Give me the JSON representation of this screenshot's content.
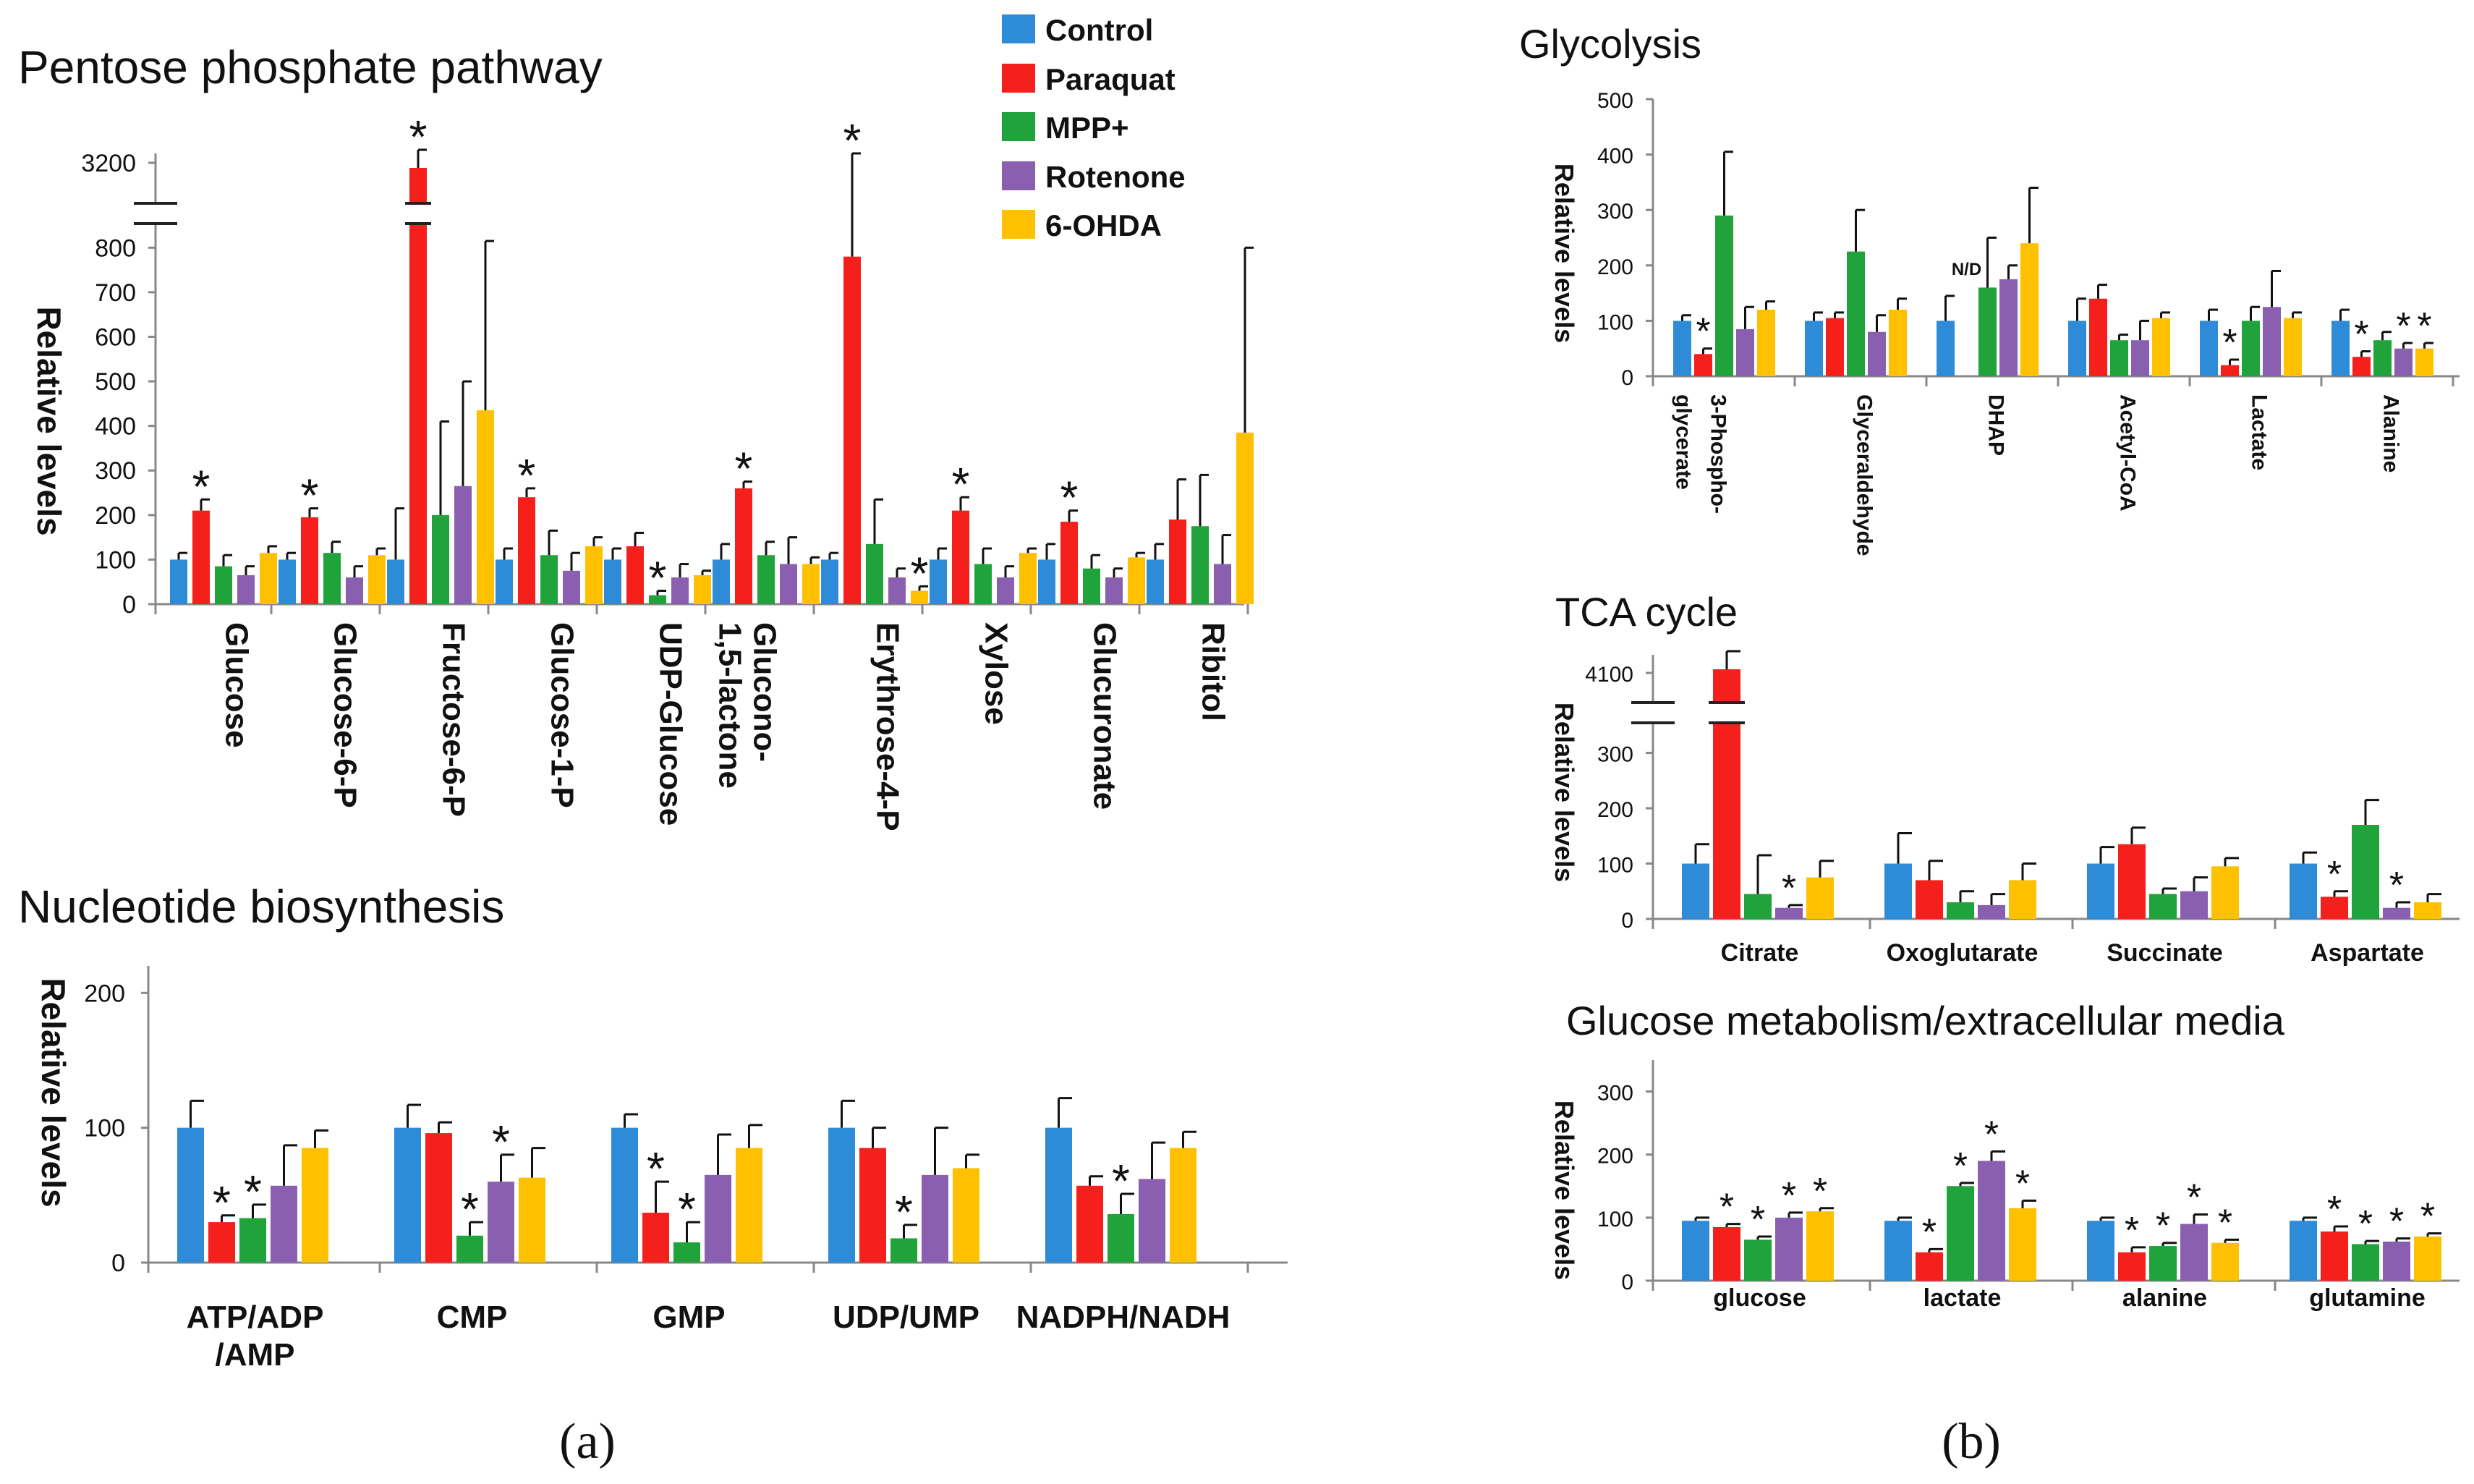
{
  "legend": [
    {
      "name": "Control",
      "color": "#2e8bd8"
    },
    {
      "name": "Paraquat",
      "color": "#f5201b"
    },
    {
      "name": "MPP+",
      "color": "#1fa33a"
    },
    {
      "name": "Rotenone",
      "color": "#8a5fb0"
    },
    {
      "name": "6-OHDA",
      "color": "#ffc000"
    }
  ],
  "panel_labels": {
    "a": "(a)",
    "b": "(b)"
  },
  "chart_data": [
    {
      "id": "ppp",
      "type": "bar",
      "title": "Pentose phosphate pathway",
      "ylabel": "Relative levels",
      "yticks": [
        0,
        100,
        200,
        300,
        400,
        500,
        600,
        700,
        800
      ],
      "break_tick": "3200",
      "ylim": [
        0,
        820
      ],
      "break": {
        "from": 820,
        "top_value": 3200
      },
      "categories": [
        "Glucose",
        "Glucose-6-P",
        "Fructose-6-P",
        "Glucose-1-P",
        "UDP-Glucose",
        "Glucono-\n1,5-lactone",
        "Erythrose-4-P",
        "Xylose",
        "Glucuronate",
        "Ribitol"
      ],
      "values": [
        [
          100,
          210,
          85,
          65,
          115
        ],
        [
          100,
          195,
          115,
          60,
          110
        ],
        [
          100,
          3150,
          200,
          265,
          435
        ],
        [
          100,
          240,
          110,
          75,
          130
        ],
        [
          100,
          130,
          20,
          60,
          65
        ],
        [
          100,
          260,
          110,
          90,
          90
        ],
        [
          100,
          780,
          135,
          60,
          30
        ],
        [
          100,
          210,
          90,
          60,
          115
        ],
        [
          100,
          185,
          80,
          60,
          105
        ],
        [
          100,
          190,
          175,
          90,
          385
        ]
      ],
      "errors": [
        [
          15,
          25,
          25,
          20,
          15
        ],
        [
          15,
          20,
          25,
          25,
          15
        ],
        [
          115,
          60,
          210,
          235,
          380
        ],
        [
          25,
          20,
          55,
          40,
          20
        ],
        [
          25,
          30,
          10,
          30,
          10
        ],
        [
          35,
          15,
          30,
          60,
          15
        ],
        [
          15,
          70,
          100,
          20,
          10
        ],
        [
          25,
          30,
          35,
          25,
          10
        ],
        [
          35,
          25,
          30,
          20,
          10
        ],
        [
          35,
          90,
          115,
          65,
          415
        ]
      ],
      "stars": [
        [
          0,
          1,
          0,
          0,
          0
        ],
        [
          0,
          1,
          0,
          0,
          0
        ],
        [
          0,
          1,
          0,
          0,
          0
        ],
        [
          0,
          1,
          0,
          0,
          0
        ],
        [
          0,
          0,
          1,
          0,
          0
        ],
        [
          0,
          1,
          0,
          0,
          0
        ],
        [
          0,
          1,
          0,
          0,
          1
        ],
        [
          0,
          1,
          0,
          0,
          0
        ],
        [
          0,
          1,
          0,
          0,
          0
        ],
        [
          0,
          0,
          0,
          0,
          0
        ]
      ]
    },
    {
      "id": "nuc",
      "type": "bar",
      "title": "Nucleotide biosynthesis",
      "ylabel": "Relative levels",
      "yticks": [
        0,
        100,
        200
      ],
      "ylim": [
        0,
        220
      ],
      "categories": [
        "ATP/ADP\n/AMP",
        "CMP",
        "GMP",
        "UDP/UMP",
        "NADPH/NADH"
      ],
      "values": [
        [
          100,
          30,
          33,
          57,
          85
        ],
        [
          100,
          96,
          20,
          60,
          63
        ],
        [
          100,
          37,
          15,
          65,
          85
        ],
        [
          100,
          85,
          18,
          65,
          70
        ],
        [
          100,
          57,
          36,
          62,
          85
        ]
      ],
      "errors": [
        [
          20,
          5,
          10,
          30,
          13
        ],
        [
          17,
          8,
          10,
          20,
          22
        ],
        [
          10,
          23,
          15,
          30,
          17
        ],
        [
          20,
          15,
          10,
          35,
          10
        ],
        [
          22,
          7,
          15,
          27,
          12
        ]
      ],
      "stars": [
        [
          0,
          1,
          1,
          0,
          0
        ],
        [
          0,
          0,
          1,
          1,
          0
        ],
        [
          0,
          1,
          1,
          0,
          0
        ],
        [
          0,
          0,
          1,
          0,
          0
        ],
        [
          0,
          0,
          1,
          0,
          0
        ]
      ]
    },
    {
      "id": "gly",
      "type": "bar",
      "title": "Glycolysis",
      "ylabel": "Relative levels",
      "yticks": [
        0,
        100,
        200,
        300,
        400,
        500
      ],
      "ylim": [
        0,
        500
      ],
      "categories": [
        "3-Phospho-\nglycerate",
        "Glyceraldehyde",
        "DHAP",
        "Acetyl-CoA",
        "Lactate",
        "Alanine"
      ],
      "values": [
        [
          100,
          40,
          290,
          85,
          120
        ],
        [
          100,
          105,
          225,
          80,
          120
        ],
        [
          100,
          0,
          160,
          175,
          240
        ],
        [
          100,
          140,
          65,
          65,
          105
        ],
        [
          100,
          20,
          100,
          125,
          105
        ],
        [
          100,
          35,
          65,
          50,
          50
        ]
      ],
      "errors": [
        [
          10,
          10,
          115,
          40,
          15
        ],
        [
          15,
          10,
          75,
          30,
          20
        ],
        [
          45,
          0,
          90,
          25,
          100
        ],
        [
          40,
          25,
          10,
          35,
          10
        ],
        [
          20,
          10,
          25,
          65,
          10
        ],
        [
          20,
          10,
          15,
          10,
          10
        ]
      ],
      "stars": [
        [
          0,
          1,
          0,
          0,
          0
        ],
        [
          0,
          0,
          0,
          0,
          0
        ],
        [
          0,
          0,
          0,
          0,
          0
        ],
        [
          0,
          0,
          0,
          0,
          0
        ],
        [
          0,
          1,
          0,
          0,
          0
        ],
        [
          0,
          1,
          0,
          1,
          1
        ]
      ],
      "annotation": "N/D"
    },
    {
      "id": "tca",
      "type": "bar",
      "title": "TCA cycle",
      "ylabel": "Relative levels",
      "yticks": [
        0,
        100,
        200,
        300
      ],
      "break_tick": "4100",
      "ylim": [
        0,
        340
      ],
      "break": {
        "from": 340,
        "top_value": 4100
      },
      "categories": [
        "Citrate",
        "Oxoglutarate",
        "Succinate",
        "Aspartate"
      ],
      "values": [
        [
          100,
          4000,
          45,
          20,
          75
        ],
        [
          100,
          70,
          30,
          25,
          70
        ],
        [
          100,
          135,
          45,
          50,
          95
        ],
        [
          100,
          40,
          170,
          20,
          30
        ]
      ],
      "errors": [
        [
          35,
          50,
          70,
          5,
          30
        ],
        [
          55,
          35,
          20,
          20,
          30
        ],
        [
          30,
          30,
          10,
          25,
          15
        ],
        [
          20,
          10,
          45,
          10,
          15
        ]
      ],
      "stars": [
        [
          0,
          0,
          0,
          1,
          0
        ],
        [
          0,
          0,
          0,
          0,
          0
        ],
        [
          0,
          0,
          0,
          0,
          0
        ],
        [
          0,
          1,
          0,
          1,
          0
        ]
      ]
    },
    {
      "id": "glc",
      "type": "bar",
      "title": "Glucose metabolism/extracellular media",
      "ylabel": "Relative levels",
      "yticks": [
        0,
        100,
        200,
        300
      ],
      "ylim": [
        0,
        350
      ],
      "categories": [
        "glucose",
        "lactate",
        "alanine",
        "glutamine"
      ],
      "values": [
        [
          95,
          85,
          65,
          100,
          110
        ],
        [
          95,
          45,
          150,
          190,
          115
        ],
        [
          95,
          45,
          55,
          90,
          60
        ],
        [
          95,
          78,
          58,
          62,
          70
        ]
      ],
      "errors": [
        [
          5,
          5,
          5,
          8,
          5
        ],
        [
          5,
          5,
          5,
          15,
          12
        ],
        [
          5,
          8,
          5,
          15,
          5
        ],
        [
          5,
          8,
          5,
          5,
          5
        ]
      ],
      "stars": [
        [
          0,
          1,
          1,
          1,
          1
        ],
        [
          0,
          1,
          1,
          1,
          1
        ],
        [
          0,
          1,
          1,
          1,
          1
        ],
        [
          0,
          1,
          1,
          1,
          1
        ]
      ]
    }
  ]
}
